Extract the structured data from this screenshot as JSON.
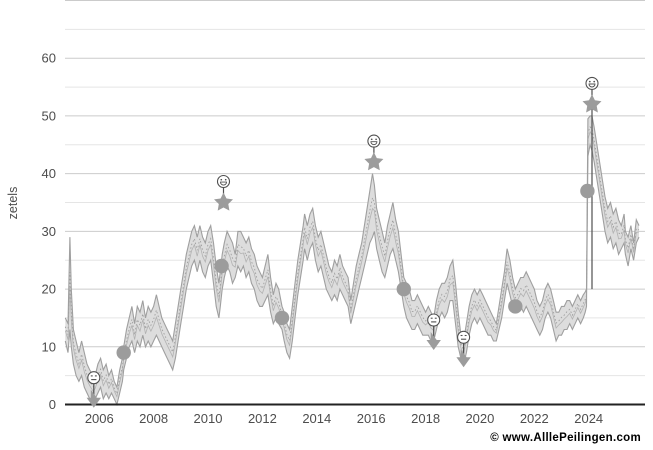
{
  "chart_data": {
    "type": "area",
    "title": "",
    "ylabel": "zetels",
    "watermark": "© www.AlllePeilingen.com",
    "xlim": [
      2004.74,
      2026.07
    ],
    "ylim": [
      0,
      70
    ],
    "x_ticks": [
      2006,
      2008,
      2010,
      2012,
      2014,
      2016,
      2018,
      2020,
      2022,
      2024
    ],
    "y_ticks": [
      0,
      10,
      20,
      30,
      40,
      50,
      60
    ],
    "grid_minor_step": 5,
    "legend": "none",
    "grid": "on",
    "band_min_max": [
      [
        2004.75,
        11,
        15
      ],
      [
        2004.85,
        9,
        14
      ],
      [
        2004.92,
        13,
        29
      ],
      [
        2004.97,
        10,
        20
      ],
      [
        2005.05,
        7,
        13
      ],
      [
        2005.15,
        5,
        11
      ],
      [
        2005.25,
        4,
        9
      ],
      [
        2005.35,
        5,
        11
      ],
      [
        2005.45,
        3,
        9
      ],
      [
        2005.55,
        2,
        7
      ],
      [
        2005.65,
        1,
        6
      ],
      [
        2005.78,
        0,
        5
      ],
      [
        2005.85,
        1,
        5
      ],
      [
        2005.95,
        2,
        7
      ],
      [
        2006.05,
        3,
        8
      ],
      [
        2006.15,
        1,
        6
      ],
      [
        2006.25,
        2,
        7
      ],
      [
        2006.35,
        1,
        5
      ],
      [
        2006.45,
        2,
        6
      ],
      [
        2006.55,
        1,
        4
      ],
      [
        2006.65,
        0,
        3
      ],
      [
        2006.75,
        2,
        6
      ],
      [
        2006.85,
        4,
        8
      ],
      [
        2006.9,
        6,
        10
      ],
      [
        2007.0,
        8,
        13
      ],
      [
        2007.1,
        10,
        15
      ],
      [
        2007.2,
        11,
        17
      ],
      [
        2007.3,
        9,
        14
      ],
      [
        2007.4,
        11,
        17
      ],
      [
        2007.5,
        10,
        16
      ],
      [
        2007.6,
        12,
        18
      ],
      [
        2007.7,
        10,
        15
      ],
      [
        2007.8,
        11,
        17
      ],
      [
        2007.9,
        10,
        16
      ],
      [
        2008.0,
        11,
        17
      ],
      [
        2008.1,
        12,
        19
      ],
      [
        2008.2,
        11,
        17
      ],
      [
        2008.3,
        10,
        15
      ],
      [
        2008.4,
        9,
        14
      ],
      [
        2008.5,
        8,
        13
      ],
      [
        2008.6,
        7,
        12
      ],
      [
        2008.7,
        6,
        11
      ],
      [
        2008.8,
        8,
        14
      ],
      [
        2008.9,
        11,
        17
      ],
      [
        2009.0,
        14,
        20
      ],
      [
        2009.1,
        17,
        23
      ],
      [
        2009.2,
        20,
        26
      ],
      [
        2009.3,
        22,
        28
      ],
      [
        2009.4,
        24,
        30
      ],
      [
        2009.5,
        25,
        31
      ],
      [
        2009.6,
        23,
        29
      ],
      [
        2009.7,
        25,
        31
      ],
      [
        2009.8,
        23,
        29
      ],
      [
        2009.9,
        22,
        28
      ],
      [
        2010.0,
        24,
        30
      ],
      [
        2010.1,
        25,
        31
      ],
      [
        2010.2,
        21,
        28
      ],
      [
        2010.3,
        17,
        24
      ],
      [
        2010.4,
        15,
        21
      ],
      [
        2010.45,
        17,
        23
      ],
      [
        2010.52,
        20,
        26
      ],
      [
        2010.6,
        22,
        28
      ],
      [
        2010.7,
        24,
        30
      ],
      [
        2010.8,
        23,
        29
      ],
      [
        2010.9,
        21,
        28
      ],
      [
        2011.0,
        22,
        26
      ],
      [
        2011.1,
        24,
        30
      ],
      [
        2011.2,
        23,
        30
      ],
      [
        2011.3,
        24,
        29
      ],
      [
        2011.4,
        22,
        28
      ],
      [
        2011.5,
        23,
        29
      ],
      [
        2011.6,
        21,
        27
      ],
      [
        2011.7,
        20,
        26
      ],
      [
        2011.8,
        18,
        24
      ],
      [
        2011.9,
        17,
        23
      ],
      [
        2012.0,
        17,
        22
      ],
      [
        2012.1,
        18,
        24
      ],
      [
        2012.2,
        19,
        26
      ],
      [
        2012.3,
        16,
        22
      ],
      [
        2012.4,
        14,
        19
      ],
      [
        2012.5,
        15,
        21
      ],
      [
        2012.6,
        14,
        20
      ],
      [
        2012.72,
        13,
        17
      ],
      [
        2012.8,
        11,
        16
      ],
      [
        2012.9,
        9,
        14
      ],
      [
        2013.0,
        8,
        13
      ],
      [
        2013.1,
        11,
        17
      ],
      [
        2013.2,
        15,
        21
      ],
      [
        2013.3,
        19,
        25
      ],
      [
        2013.4,
        22,
        28
      ],
      [
        2013.5,
        25,
        31
      ],
      [
        2013.55,
        27,
        33
      ],
      [
        2013.65,
        25,
        31
      ],
      [
        2013.75,
        27,
        33
      ],
      [
        2013.85,
        28,
        34
      ],
      [
        2013.95,
        25,
        31
      ],
      [
        2014.05,
        23,
        29
      ],
      [
        2014.15,
        24,
        30
      ],
      [
        2014.25,
        22,
        28
      ],
      [
        2014.35,
        20,
        26
      ],
      [
        2014.45,
        19,
        24
      ],
      [
        2014.55,
        18,
        23
      ],
      [
        2014.65,
        19,
        25
      ],
      [
        2014.75,
        18,
        24
      ],
      [
        2014.85,
        20,
        26
      ],
      [
        2014.95,
        19,
        24
      ],
      [
        2015.05,
        18,
        23
      ],
      [
        2015.15,
        17,
        22
      ],
      [
        2015.25,
        14,
        18
      ],
      [
        2015.35,
        16,
        21
      ],
      [
        2015.45,
        18,
        24
      ],
      [
        2015.55,
        20,
        26
      ],
      [
        2015.65,
        22,
        28
      ],
      [
        2015.75,
        24,
        31
      ],
      [
        2015.85,
        26,
        34
      ],
      [
        2015.95,
        28,
        37
      ],
      [
        2016.05,
        29,
        40
      ],
      [
        2016.12,
        30,
        38
      ],
      [
        2016.2,
        27,
        34
      ],
      [
        2016.3,
        25,
        32
      ],
      [
        2016.4,
        23,
        30
      ],
      [
        2016.5,
        22,
        28
      ],
      [
        2016.6,
        24,
        31
      ],
      [
        2016.7,
        26,
        33
      ],
      [
        2016.8,
        27,
        35
      ],
      [
        2016.9,
        25,
        32
      ],
      [
        2017.0,
        23,
        30
      ],
      [
        2017.1,
        20,
        26
      ],
      [
        2017.2,
        17,
        22
      ],
      [
        2017.3,
        15,
        21
      ],
      [
        2017.4,
        14,
        20
      ],
      [
        2017.5,
        13,
        18
      ],
      [
        2017.6,
        13,
        18
      ],
      [
        2017.7,
        14,
        19
      ],
      [
        2017.8,
        13,
        18
      ],
      [
        2017.9,
        12,
        17
      ],
      [
        2018.0,
        12,
        16
      ],
      [
        2018.1,
        12,
        17
      ],
      [
        2018.2,
        11,
        16
      ],
      [
        2018.3,
        11,
        15
      ],
      [
        2018.4,
        13,
        18
      ],
      [
        2018.5,
        15,
        20
      ],
      [
        2018.6,
        16,
        21
      ],
      [
        2018.7,
        15,
        21
      ],
      [
        2018.8,
        16,
        22
      ],
      [
        2018.9,
        18,
        24
      ],
      [
        2019.0,
        18,
        25
      ],
      [
        2019.1,
        14,
        21
      ],
      [
        2019.2,
        10,
        16
      ],
      [
        2019.3,
        8,
        12
      ],
      [
        2019.4,
        7,
        11
      ],
      [
        2019.5,
        9,
        14
      ],
      [
        2019.6,
        12,
        17
      ],
      [
        2019.7,
        14,
        19
      ],
      [
        2019.8,
        15,
        20
      ],
      [
        2019.9,
        14,
        19
      ],
      [
        2020.0,
        15,
        20
      ],
      [
        2020.1,
        14,
        19
      ],
      [
        2020.2,
        13,
        18
      ],
      [
        2020.3,
        12,
        17
      ],
      [
        2020.4,
        12,
        16
      ],
      [
        2020.5,
        11,
        15
      ],
      [
        2020.6,
        11,
        14
      ],
      [
        2020.7,
        13,
        17
      ],
      [
        2020.8,
        15,
        20
      ],
      [
        2020.9,
        18,
        23
      ],
      [
        2021.0,
        21,
        27
      ],
      [
        2021.1,
        19,
        25
      ],
      [
        2021.2,
        17,
        22
      ],
      [
        2021.3,
        16,
        20
      ],
      [
        2021.4,
        16,
        21
      ],
      [
        2021.5,
        17,
        22
      ],
      [
        2021.6,
        16,
        22
      ],
      [
        2021.7,
        17,
        23
      ],
      [
        2021.8,
        16,
        22
      ],
      [
        2021.9,
        15,
        21
      ],
      [
        2022.0,
        14,
        20
      ],
      [
        2022.1,
        13,
        18
      ],
      [
        2022.2,
        12,
        17
      ],
      [
        2022.3,
        13,
        18
      ],
      [
        2022.4,
        15,
        20
      ],
      [
        2022.5,
        16,
        21
      ],
      [
        2022.6,
        15,
        20
      ],
      [
        2022.7,
        13,
        18
      ],
      [
        2022.8,
        11,
        16
      ],
      [
        2022.9,
        12,
        16
      ],
      [
        2023.0,
        12,
        17
      ],
      [
        2023.1,
        13,
        17
      ],
      [
        2023.2,
        13,
        18
      ],
      [
        2023.3,
        14,
        18
      ],
      [
        2023.4,
        13,
        17
      ],
      [
        2023.5,
        14,
        18
      ],
      [
        2023.6,
        15,
        19
      ],
      [
        2023.7,
        14,
        18
      ],
      [
        2023.8,
        15,
        19
      ],
      [
        2023.87,
        16,
        19.5
      ],
      [
        2023.92,
        17,
        20
      ],
      [
        2023.97,
        43,
        49.5
      ],
      [
        2024.05,
        45,
        50
      ],
      [
        2024.12,
        44,
        50
      ],
      [
        2024.2,
        42,
        48
      ],
      [
        2024.3,
        39,
        45
      ],
      [
        2024.4,
        36,
        42
      ],
      [
        2024.5,
        33,
        39
      ],
      [
        2024.6,
        30,
        36
      ],
      [
        2024.7,
        28,
        34
      ],
      [
        2024.8,
        29,
        35
      ],
      [
        2024.9,
        27,
        33
      ],
      [
        2025.0,
        28,
        34
      ],
      [
        2025.1,
        26,
        32
      ],
      [
        2025.2,
        27,
        31
      ],
      [
        2025.3,
        28,
        33
      ],
      [
        2025.35,
        26,
        30
      ],
      [
        2025.45,
        24,
        29
      ],
      [
        2025.55,
        27,
        31
      ],
      [
        2025.65,
        25,
        28
      ],
      [
        2025.75,
        28,
        32
      ],
      [
        2025.85,
        29,
        31
      ]
    ],
    "elections": [
      {
        "year": 2006.9,
        "seats": 9
      },
      {
        "year": 2010.5,
        "seats": 24
      },
      {
        "year": 2012.72,
        "seats": 15
      },
      {
        "year": 2017.2,
        "seats": 20
      },
      {
        "year": 2021.3,
        "seats": 17
      },
      {
        "year": 2023.95,
        "seats": 37
      }
    ],
    "record_highs": [
      {
        "year": 2010.57,
        "seats": 35,
        "emoji": "grin"
      },
      {
        "year": 2016.1,
        "seats": 42,
        "emoji": "grin"
      },
      {
        "year": 2024.12,
        "seats": 52,
        "emoji": "grin",
        "line_to": 20
      }
    ],
    "record_lows": [
      {
        "year": 2005.8,
        "seats": 1,
        "emoji": "neutral"
      },
      {
        "year": 2018.3,
        "seats": 11,
        "emoji": "neutral"
      },
      {
        "year": 2019.4,
        "seats": 8,
        "emoji": "neutral"
      }
    ],
    "colors": {
      "band_fill": "#dbdbdb",
      "band_edge": "#9f9f9f",
      "band_inner": "#b2b2b2",
      "marker": "#9c9c9c",
      "emoji_stroke": "#4f4f4f",
      "grid_major": "#cbcbcb",
      "grid_minor": "#e5e5e5",
      "axis": "#222222",
      "tick_text": "#4d4d4d",
      "watermark": "#c3c3c3"
    }
  }
}
